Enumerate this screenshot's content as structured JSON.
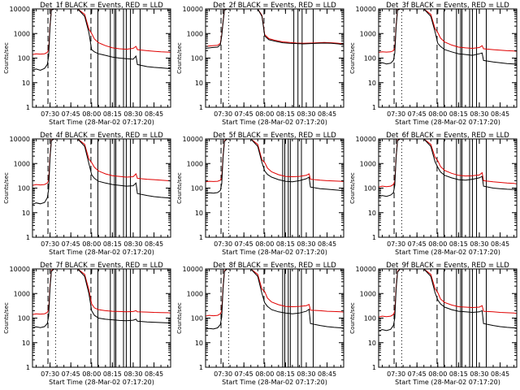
{
  "chart_data": {
    "type": "line",
    "layout": {
      "rows": 3,
      "cols": 3
    },
    "yscale": "log",
    "ylim": [
      1,
      10000
    ],
    "xlim": [
      "07:17:20",
      "08:57:00"
    ],
    "xticks": [
      "07:30",
      "07:45",
      "08:00",
      "08:15",
      "08:30",
      "08:45"
    ],
    "yticks": [
      "1",
      "10",
      "100",
      "1000",
      "10000"
    ],
    "ylabel": "Counts/sec",
    "xlabel": "Start Time (28-Mar-02 07:17:20)",
    "series_colors": {
      "events": "#000000",
      "lld": "#e00000"
    },
    "panels": [
      {
        "title": "Det_1f  BLACK = Events, RED = LLD",
        "x": [
          "07:17:20",
          "07:20",
          "07:23",
          "07:26",
          "07:28",
          "07:29",
          "07:30",
          "07:31",
          "07:33",
          "07:36",
          "07:40",
          "07:45",
          "07:50",
          "07:55",
          "07:58",
          "08:00",
          "08:02",
          "08:05",
          "08:10",
          "08:15",
          "08:20",
          "08:25",
          "08:30",
          "08:32",
          "08:33",
          "08:40",
          "08:45",
          "08:50",
          "08:55",
          "08:57"
        ],
        "events": [
          33,
          36,
          32,
          38,
          55,
          120,
          2000,
          9000,
          10000,
          10000,
          10000,
          10000,
          10000,
          5000,
          1100,
          220,
          180,
          150,
          130,
          110,
          100,
          95,
          90,
          120,
          55,
          45,
          42,
          40,
          38,
          36
        ],
        "lld": [
          140,
          150,
          145,
          150,
          170,
          220,
          2200,
          9500,
          10000,
          10000,
          10000,
          10000,
          10000,
          6000,
          1500,
          1000,
          600,
          420,
          320,
          260,
          240,
          230,
          250,
          300,
          220,
          200,
          190,
          180,
          175,
          170
        ],
        "dashed_lines": [
          "07:28:30",
          "07:59:30"
        ],
        "dotted_lines": [
          "07:34:00"
        ],
        "solid_lines": [
          "08:04:30",
          "08:13:30",
          "08:16:30",
          "08:17:30",
          "08:23:00",
          "08:25:00",
          "08:28:00",
          "08:35:00"
        ]
      },
      {
        "title": "Det_2f  BLACK = Events, RED = LLD",
        "x": [
          "07:17:20",
          "07:22",
          "07:26",
          "07:28",
          "07:29",
          "07:30",
          "07:31",
          "07:33",
          "07:36",
          "07:40",
          "07:45",
          "07:50",
          "07:55",
          "07:58",
          "08:00",
          "08:03",
          "08:08",
          "08:13",
          "08:18",
          "08:23",
          "08:28",
          "08:33",
          "08:38",
          "08:43",
          "08:48",
          "08:53",
          "08:57"
        ],
        "events": [
          250,
          270,
          280,
          350,
          800,
          3000,
          9000,
          10000,
          10000,
          10000,
          10000,
          10000,
          10000,
          5000,
          800,
          560,
          480,
          420,
          400,
          390,
          380,
          390,
          400,
          410,
          400,
          380,
          350
        ],
        "lld": [
          300,
          320,
          330,
          400,
          900,
          3200,
          9500,
          10000,
          10000,
          10000,
          10000,
          10000,
          10000,
          5500,
          900,
          620,
          520,
          460,
          430,
          410,
          400,
          410,
          420,
          430,
          420,
          400,
          380
        ],
        "dashed_lines": [
          "07:28:30",
          "07:59:30"
        ],
        "dotted_lines": [
          "07:34:00"
        ],
        "solid_lines": [
          "08:21:00",
          "08:24:00",
          "08:27:00",
          "08:35:00"
        ]
      },
      {
        "title": "Det_3f  BLACK = Events, RED = LLD",
        "x": [
          "07:17:20",
          "07:20",
          "07:23",
          "07:26",
          "07:28",
          "07:29",
          "07:30",
          "07:31",
          "07:33",
          "07:36",
          "07:40",
          "07:45",
          "07:50",
          "07:55",
          "07:58",
          "08:00",
          "08:02",
          "08:05",
          "08:10",
          "08:15",
          "08:20",
          "08:25",
          "08:30",
          "08:32",
          "08:33",
          "08:40",
          "08:45",
          "08:50",
          "08:55",
          "08:57"
        ],
        "events": [
          60,
          65,
          58,
          62,
          80,
          160,
          2000,
          9000,
          10000,
          10000,
          10000,
          10000,
          10000,
          5000,
          1200,
          400,
          300,
          220,
          180,
          150,
          140,
          130,
          150,
          160,
          80,
          70,
          65,
          60,
          58,
          55
        ],
        "lld": [
          170,
          180,
          175,
          180,
          200,
          260,
          2300,
          9500,
          10000,
          10000,
          10000,
          10000,
          10000,
          6000,
          1600,
          1100,
          650,
          450,
          340,
          280,
          260,
          250,
          270,
          320,
          240,
          220,
          210,
          200,
          195,
          190
        ],
        "dashed_lines": [
          "07:28:30",
          "07:59:30"
        ],
        "dotted_lines": [
          "07:34:00"
        ],
        "solid_lines": [
          "08:04:30",
          "08:13:30",
          "08:16:30",
          "08:17:30",
          "08:23:00",
          "08:25:00",
          "08:28:00",
          "08:35:00"
        ]
      },
      {
        "title": "Det_4f  BLACK = Events, RED = LLD",
        "x": [
          "07:17:20",
          "07:20",
          "07:23",
          "07:26",
          "07:28",
          "07:29",
          "07:30",
          "07:31",
          "07:33",
          "07:36",
          "07:40",
          "07:45",
          "07:50",
          "07:55",
          "07:58",
          "08:00",
          "08:02",
          "08:05",
          "08:10",
          "08:15",
          "08:20",
          "08:25",
          "08:30",
          "08:32",
          "08:33",
          "08:40",
          "08:45",
          "08:50",
          "08:55",
          "08:57"
        ],
        "events": [
          22,
          25,
          23,
          26,
          40,
          90,
          1800,
          8500,
          10000,
          10000,
          10000,
          10000,
          10000,
          5000,
          1000,
          350,
          250,
          190,
          160,
          140,
          130,
          120,
          125,
          160,
          60,
          50,
          45,
          42,
          40,
          38
        ],
        "lld": [
          130,
          140,
          135,
          140,
          160,
          210,
          2100,
          9000,
          10000,
          10000,
          10000,
          10000,
          10000,
          6000,
          1500,
          1100,
          700,
          500,
          380,
          320,
          300,
          280,
          290,
          380,
          250,
          230,
          220,
          210,
          200,
          195
        ],
        "dashed_lines": [
          "07:28:30",
          "07:59:30"
        ],
        "dotted_lines": [
          "07:34:00"
        ],
        "solid_lines": [
          "08:04:30",
          "08:13:30",
          "08:16:30",
          "08:17:30",
          "08:23:00",
          "08:25:00",
          "08:28:00",
          "08:35:00"
        ]
      },
      {
        "title": "Det_5f  BLACK = Events, RED = LLD",
        "x": [
          "07:17:20",
          "07:20",
          "07:23",
          "07:26",
          "07:28",
          "07:29",
          "07:30",
          "07:31",
          "07:33",
          "07:36",
          "07:40",
          "07:45",
          "07:50",
          "07:55",
          "07:58",
          "08:00",
          "08:02",
          "08:05",
          "08:10",
          "08:15",
          "08:20",
          "08:25",
          "08:30",
          "08:32",
          "08:33",
          "08:40",
          "08:45",
          "08:50",
          "08:55",
          "08:57"
        ],
        "events": [
          60,
          65,
          62,
          66,
          80,
          150,
          1900,
          8000,
          10000,
          10000,
          10000,
          10000,
          10000,
          5000,
          1100,
          500,
          360,
          280,
          220,
          190,
          180,
          200,
          240,
          280,
          110,
          95,
          90,
          85,
          80,
          78
        ],
        "lld": [
          180,
          190,
          185,
          190,
          210,
          260,
          2200,
          8500,
          10000,
          10000,
          10000,
          10000,
          10000,
          6000,
          1400,
          1100,
          650,
          460,
          350,
          300,
          290,
          300,
          330,
          380,
          230,
          210,
          200,
          195,
          190,
          185
        ],
        "dashed_lines": [
          "07:28:30",
          "07:59:30"
        ],
        "dotted_lines": [
          "07:34:00"
        ],
        "solid_lines": [
          "08:13:00",
          "08:14:30",
          "08:17:00",
          "08:18:30",
          "08:24:00",
          "08:26:30",
          "08:35:00"
        ]
      },
      {
        "title": "Det_6f  BLACK = Events, RED = LLD",
        "x": [
          "07:17:20",
          "07:20",
          "07:23",
          "07:26",
          "07:28",
          "07:29",
          "07:30",
          "07:31",
          "07:33",
          "07:36",
          "07:40",
          "07:45",
          "07:50",
          "07:55",
          "07:58",
          "08:00",
          "08:02",
          "08:05",
          "08:10",
          "08:15",
          "08:20",
          "08:25",
          "08:30",
          "08:32",
          "08:33",
          "08:40",
          "08:45",
          "08:50",
          "08:55",
          "08:57"
        ],
        "events": [
          45,
          50,
          46,
          52,
          65,
          130,
          1900,
          8500,
          10000,
          10000,
          10000,
          10000,
          10000,
          5000,
          1200,
          700,
          450,
          330,
          260,
          220,
          210,
          230,
          260,
          300,
          120,
          100,
          95,
          90,
          88,
          85
        ],
        "lld": [
          110,
          120,
          115,
          120,
          140,
          190,
          2000,
          9000,
          10000,
          10000,
          10000,
          10000,
          10000,
          6000,
          1800,
          1300,
          750,
          520,
          400,
          330,
          310,
          320,
          340,
          420,
          200,
          180,
          170,
          160,
          155,
          150
        ],
        "dashed_lines": [
          "07:28:30",
          "07:59:30"
        ],
        "dotted_lines": [
          "07:34:00"
        ],
        "solid_lines": [
          "08:04:30",
          "08:13:30",
          "08:16:30",
          "08:17:30",
          "08:23:00",
          "08:25:00",
          "08:28:00",
          "08:35:00"
        ]
      },
      {
        "title": "Det_7f  BLACK = Events, RED = LLD",
        "x": [
          "07:17:20",
          "07:20",
          "07:23",
          "07:26",
          "07:28",
          "07:29",
          "07:30",
          "07:31",
          "07:33",
          "07:36",
          "07:40",
          "07:45",
          "07:50",
          "07:55",
          "07:58",
          "08:00",
          "08:02",
          "08:05",
          "08:10",
          "08:15",
          "08:20",
          "08:25",
          "08:30",
          "08:32",
          "08:33",
          "08:40",
          "08:45",
          "08:50",
          "08:55",
          "08:57"
        ],
        "events": [
          40,
          44,
          41,
          45,
          60,
          120,
          1800,
          8000,
          10000,
          10000,
          10000,
          10000,
          10000,
          5000,
          1000,
          200,
          130,
          100,
          90,
          85,
          80,
          78,
          82,
          90,
          75,
          70,
          68,
          66,
          64,
          62
        ],
        "lld": [
          140,
          150,
          145,
          150,
          170,
          220,
          2100,
          8800,
          10000,
          10000,
          10000,
          10000,
          10000,
          6000,
          1400,
          380,
          260,
          220,
          200,
          190,
          185,
          180,
          185,
          200,
          180,
          175,
          170,
          168,
          165,
          160
        ],
        "dashed_lines": [
          "07:28:30",
          "07:59:30"
        ],
        "dotted_lines": [
          "07:34:00"
        ],
        "solid_lines": [
          "08:04:30",
          "08:13:30",
          "08:16:30",
          "08:17:30",
          "08:23:00",
          "08:25:00",
          "08:28:00",
          "08:35:00"
        ]
      },
      {
        "title": "Det_8f  BLACK = Events, RED = LLD",
        "x": [
          "07:17:20",
          "07:20",
          "07:23",
          "07:26",
          "07:28",
          "07:29",
          "07:30",
          "07:31",
          "07:33",
          "07:36",
          "07:40",
          "07:45",
          "07:50",
          "07:55",
          "07:58",
          "08:00",
          "08:02",
          "08:05",
          "08:10",
          "08:15",
          "08:20",
          "08:25",
          "08:30",
          "08:32",
          "08:33",
          "08:40",
          "08:45",
          "08:50",
          "08:55",
          "08:57"
        ],
        "events": [
          35,
          38,
          36,
          40,
          55,
          110,
          1700,
          8000,
          10000,
          10000,
          10000,
          10000,
          10000,
          5000,
          1000,
          420,
          300,
          220,
          180,
          160,
          150,
          160,
          190,
          230,
          60,
          50,
          45,
          42,
          40,
          38
        ],
        "lld": [
          120,
          130,
          125,
          130,
          150,
          200,
          2000,
          8500,
          10000,
          10000,
          10000,
          10000,
          10000,
          6000,
          1500,
          1200,
          650,
          450,
          350,
          300,
          290,
          300,
          320,
          360,
          210,
          200,
          190,
          185,
          180,
          175
        ],
        "dashed_lines": [
          "07:28:30",
          "07:59:30"
        ],
        "dotted_lines": [
          "07:34:00"
        ],
        "solid_lines": [
          "08:13:00",
          "08:14:30",
          "08:17:00",
          "08:18:30",
          "08:24:00",
          "08:26:30",
          "08:35:00"
        ]
      },
      {
        "title": "Det_9f  BLACK = Events, RED = LLD",
        "x": [
          "07:17:20",
          "07:20",
          "07:23",
          "07:26",
          "07:28",
          "07:29",
          "07:30",
          "07:31",
          "07:33",
          "07:36",
          "07:40",
          "07:45",
          "07:50",
          "07:55",
          "07:58",
          "08:00",
          "08:02",
          "08:05",
          "08:10",
          "08:15",
          "08:20",
          "08:25",
          "08:30",
          "08:32",
          "08:33",
          "08:40",
          "08:45",
          "08:50",
          "08:55",
          "08:57"
        ],
        "events": [
          30,
          34,
          31,
          35,
          50,
          100,
          1600,
          7500,
          10000,
          10000,
          10000,
          10000,
          10000,
          5000,
          1100,
          550,
          380,
          280,
          220,
          190,
          180,
          170,
          180,
          200,
          60,
          50,
          45,
          42,
          40,
          38
        ],
        "lld": [
          110,
          120,
          115,
          120,
          140,
          190,
          1900,
          8000,
          10000,
          10000,
          10000,
          10000,
          10000,
          6000,
          1600,
          1100,
          600,
          430,
          340,
          290,
          280,
          270,
          280,
          320,
          190,
          180,
          170,
          165,
          160,
          155
        ],
        "dashed_lines": [
          "07:28:30",
          "07:59:30"
        ],
        "dotted_lines": [
          "07:34:00"
        ],
        "solid_lines": [
          "08:04:30",
          "08:13:30",
          "08:16:30",
          "08:17:30",
          "08:23:00",
          "08:25:00",
          "08:28:00",
          "08:35:00"
        ]
      }
    ]
  }
}
